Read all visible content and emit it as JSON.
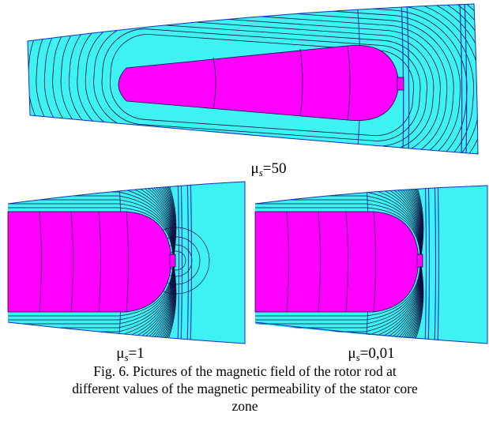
{
  "panels": [
    {
      "label": {
        "symbol": "μ",
        "subscript": "s",
        "value": "=50"
      }
    },
    {
      "label": {
        "symbol": "μ",
        "subscript": "s",
        "value": "=1"
      }
    },
    {
      "label": {
        "symbol": "μ",
        "subscript": "s",
        "value": "=0,01"
      }
    }
  ],
  "caption": {
    "lines": [
      "Fig. 6. Pictures of the magnetic field of the rotor rod at",
      "different values of the magnetic permeability of the stator core",
      "zone"
    ]
  }
}
